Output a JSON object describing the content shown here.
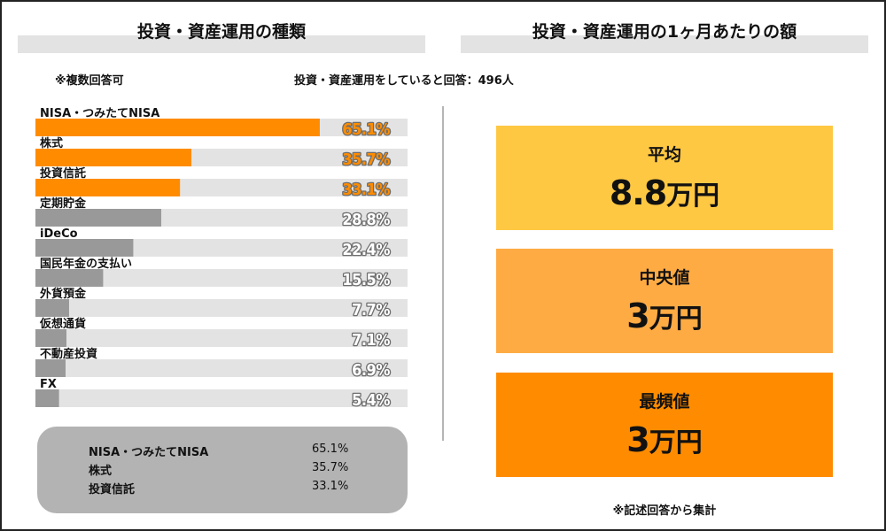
{
  "left_panel": {
    "title": "投資・資産運用の種類",
    "note_multi": "※複数回答可",
    "note_count": "投資・資産運用をしていると回答：496人"
  },
  "right_panel": {
    "title": "投資・資産運用の1ヶ月あたりの額",
    "stats": [
      {
        "label": "平均",
        "value": "8.8",
        "unit": "万円",
        "color": "#ffc843"
      },
      {
        "label": "中央値",
        "value": "3",
        "unit": "万円",
        "color": "#ffab44"
      },
      {
        "label": "最頻値",
        "value": "3",
        "unit": "万円",
        "color": "#ff8c00"
      }
    ],
    "footnote": "※記述回答から集計"
  },
  "summary": {
    "rows": [
      {
        "name": "NISA・つみたてNISA",
        "value": "65.1%"
      },
      {
        "name": "株式",
        "value": "35.7%"
      },
      {
        "name": "投資信託",
        "value": "33.1%"
      }
    ]
  },
  "colors": {
    "highlight_bar": "#ff8c00",
    "normal_bar": "#999999",
    "track": "#e3e3e3",
    "highlight_label": "#ff8c00",
    "normal_label": "#ffffff",
    "label_outline": "#6e6e6e"
  },
  "chart_data": {
    "type": "bar",
    "orientation": "horizontal",
    "title": "投資・資産運用の種類",
    "categories": [
      "NISA・つみたてNISA",
      "株式",
      "投資信託",
      "定期貯金",
      "iDeCo",
      "国民年金の支払い",
      "外貨預金",
      "仮想通貨",
      "不動産投資",
      "FX"
    ],
    "values": [
      65.1,
      35.7,
      33.1,
      28.8,
      22.4,
      15.5,
      7.7,
      7.1,
      6.9,
      5.4
    ],
    "value_labels": [
      "65.1%",
      "35.7%",
      "33.1%",
      "28.8%",
      "22.4%",
      "15.5%",
      "7.7%",
      "7.1%",
      "6.9%",
      "5.4%"
    ],
    "highlighted": [
      true,
      true,
      true,
      false,
      false,
      false,
      false,
      false,
      false,
      false
    ],
    "xlim": [
      0,
      100
    ],
    "unit": "%"
  }
}
